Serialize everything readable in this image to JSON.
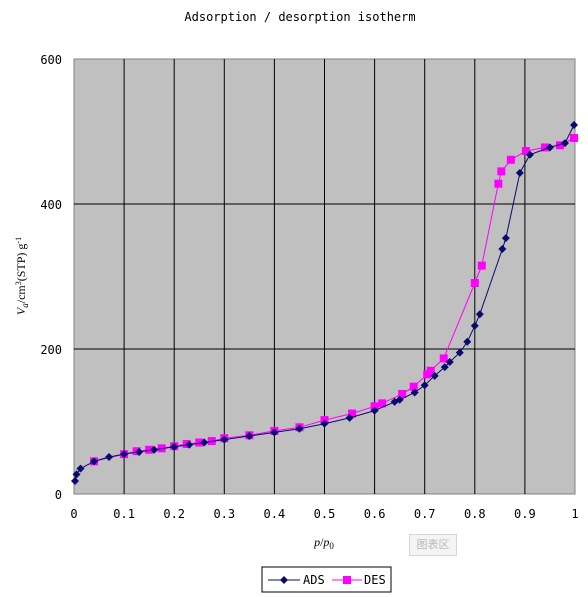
{
  "chart_data": {
    "type": "line",
    "title": "Adsorption / desorption isotherm",
    "xlabel": {
      "p": "p",
      "sep": "/",
      "p0": "p",
      "p0_sub": "0"
    },
    "ylabel": {
      "v": "V",
      "v_sub": "a",
      "rest1": "/cm",
      "rest_sup": "3",
      "rest2": "(STP) g",
      "rest_sup2": "-1"
    },
    "xlim": [
      0,
      1
    ],
    "ylim": [
      0,
      600
    ],
    "x_ticks": [
      "0",
      "0.1",
      "0.2",
      "0.3",
      "0.4",
      "0.5",
      "0.6",
      "0.7",
      "0.8",
      "0.9",
      "1"
    ],
    "y_ticks": [
      "0",
      "200",
      "400",
      "600"
    ],
    "grid": true,
    "legend_position": "bottom-center",
    "series": [
      {
        "name": "ADS",
        "color": "#0a0a6e",
        "marker": "diamond",
        "x": [
          0.002,
          0.005,
          0.013,
          0.04,
          0.07,
          0.1,
          0.13,
          0.16,
          0.2,
          0.23,
          0.26,
          0.3,
          0.35,
          0.4,
          0.45,
          0.5,
          0.55,
          0.6,
          0.64,
          0.65,
          0.68,
          0.7,
          0.72,
          0.74,
          0.75,
          0.77,
          0.785,
          0.8,
          0.81,
          0.855,
          0.862,
          0.89,
          0.91,
          0.95,
          0.98,
          0.998
        ],
        "y": [
          18,
          27,
          35,
          45,
          51,
          55,
          58,
          61,
          65,
          68,
          71,
          75,
          80,
          85,
          90,
          97,
          105,
          115,
          127,
          130,
          140,
          150,
          163,
          175,
          182,
          195,
          210,
          232,
          248,
          338,
          353,
          443,
          468,
          478,
          484,
          509
        ]
      },
      {
        "name": "DES",
        "color": "#ff00ff",
        "marker": "square",
        "x": [
          0.04,
          0.1,
          0.125,
          0.15,
          0.175,
          0.2,
          0.225,
          0.25,
          0.275,
          0.3,
          0.35,
          0.4,
          0.45,
          0.5,
          0.555,
          0.6,
          0.615,
          0.655,
          0.678,
          0.705,
          0.712,
          0.738,
          0.8,
          0.814,
          0.847,
          0.853,
          0.872,
          0.902,
          0.94,
          0.97,
          0.998
        ],
        "y": [
          45,
          55,
          59,
          61,
          63,
          66,
          69,
          71,
          73,
          77,
          81,
          87,
          92,
          102,
          111,
          121,
          125,
          138,
          148,
          165,
          170,
          187,
          291,
          315,
          428,
          445,
          461,
          473,
          478,
          481,
          491
        ]
      }
    ]
  }
}
